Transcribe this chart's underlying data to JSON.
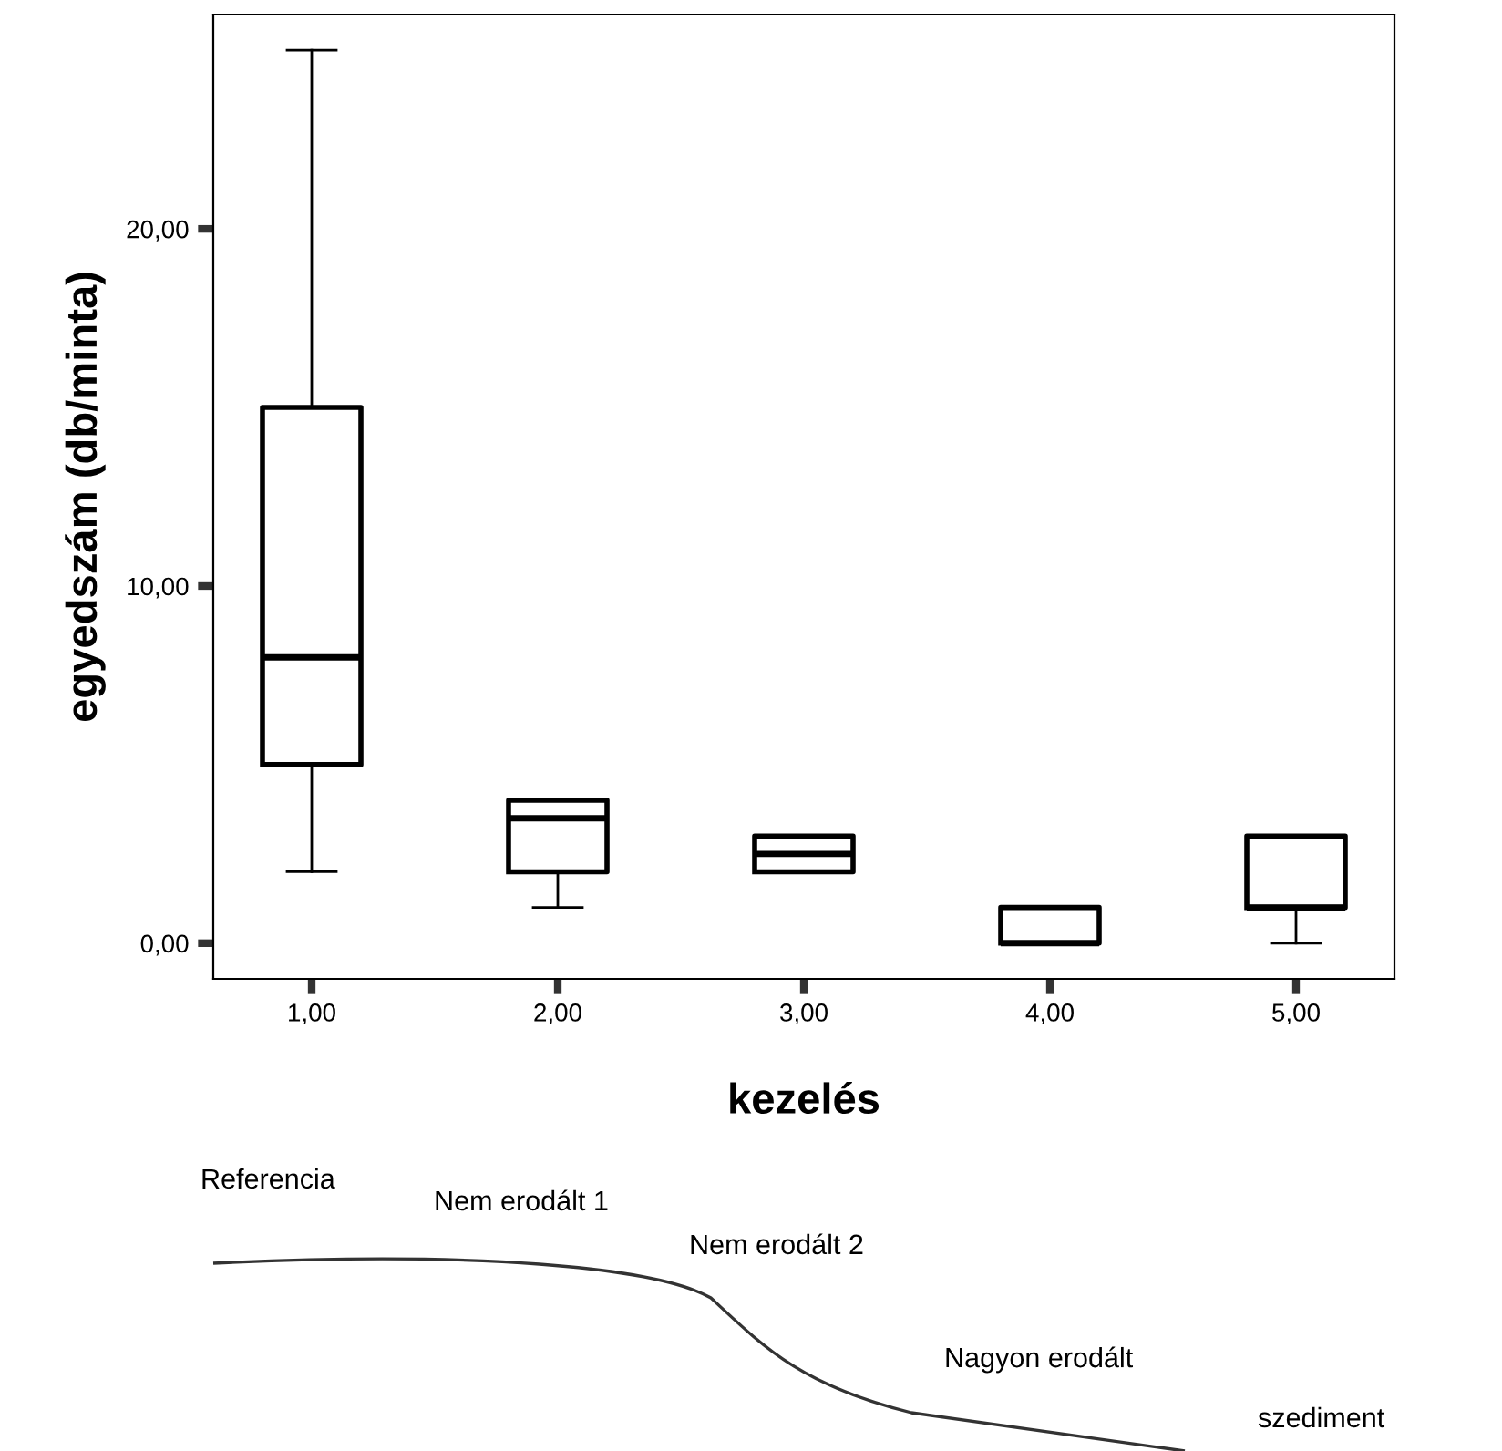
{
  "chart_data": {
    "type": "box",
    "xlabel": "kezelés",
    "ylabel": "egyedszám (db/minta)",
    "categories": [
      "1,00",
      "2,00",
      "3,00",
      "4,00",
      "5,00"
    ],
    "boxes": [
      {
        "low": 2,
        "q1": 5,
        "median": 8,
        "q3": 15,
        "high": 25
      },
      {
        "low": 1,
        "q1": 2,
        "median": 3.5,
        "q3": 4,
        "high": 4
      },
      {
        "low": 2,
        "q1": 2,
        "median": 2.5,
        "q3": 3,
        "high": 3
      },
      {
        "low": 0,
        "q1": 0,
        "median": 0,
        "q3": 1,
        "high": 1
      },
      {
        "low": 0,
        "q1": 1,
        "median": 1,
        "q3": 3,
        "high": 3
      }
    ],
    "ylim": [
      -1,
      26
    ],
    "yticks": [
      {
        "value": 0,
        "label": "0,00"
      },
      {
        "value": 10,
        "label": "10,00"
      },
      {
        "value": 20,
        "label": "20,00"
      }
    ],
    "grid": false,
    "annotations": [
      "Referencia",
      "Nem erodált 1",
      "Nem erodált 2",
      "Nagyon erodált",
      "szediment"
    ]
  }
}
